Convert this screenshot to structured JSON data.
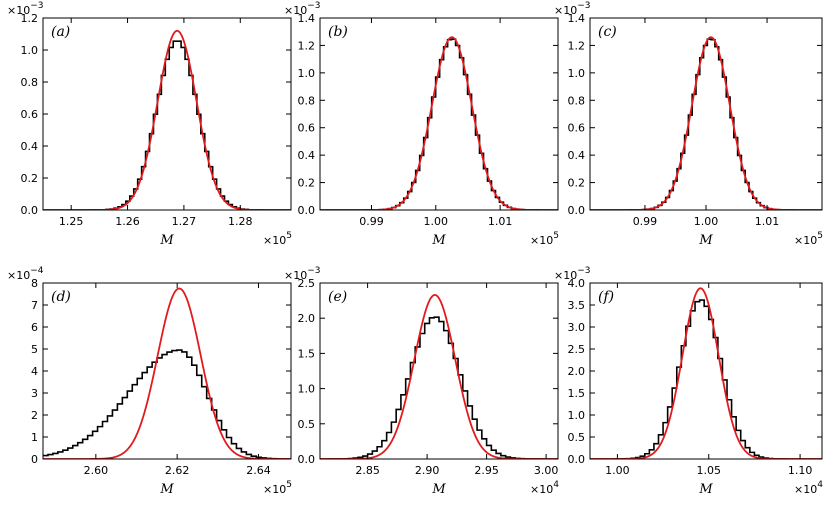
{
  "chart_data": [
    {
      "type": "line",
      "panel_label": "(a)",
      "xlabel": "M",
      "x_multiplier": "×10",
      "x_exponent": "5",
      "y_multiplier": "×10",
      "y_exponent": "−3",
      "xlim": [
        1.245,
        1.289
      ],
      "ylim": [
        0,
        1.2
      ],
      "x_ticks": [
        1.25,
        1.26,
        1.27,
        1.28
      ],
      "x_tick_labels": [
        "1.25",
        "1.26",
        "1.27",
        "1.28"
      ],
      "y_ticks": [
        0,
        0.2,
        0.4,
        0.6,
        0.8,
        1.0,
        1.2
      ],
      "y_tick_labels": [
        "0.0",
        "0.2",
        "0.4",
        "0.6",
        "0.8",
        "1.0",
        "1.2"
      ],
      "series": [
        {
          "name": "histogram",
          "kind": "step",
          "color": "#000000",
          "mean": 1.2688,
          "peak": 1.06,
          "sd_left": 0.0036,
          "sd_right": 0.0036,
          "bin_width": 0.0007,
          "range": [
            1.245,
            1.289
          ]
        },
        {
          "name": "gaussian fit",
          "kind": "curve",
          "color": "#e31a1c",
          "mean": 1.2688,
          "peak": 1.12,
          "sd": 0.00345
        }
      ]
    },
    {
      "type": "line",
      "panel_label": "(b)",
      "xlabel": "M",
      "x_multiplier": "×10",
      "x_exponent": "5",
      "y_multiplier": "×10",
      "y_exponent": "−3",
      "xlim": [
        0.982,
        1.019
      ],
      "ylim": [
        0,
        1.4
      ],
      "x_ticks": [
        0.99,
        1.0,
        1.01
      ],
      "x_tick_labels": [
        "0.99",
        "1.00",
        "1.01"
      ],
      "y_ticks": [
        0,
        0.2,
        0.4,
        0.6,
        0.8,
        1.0,
        1.2,
        1.4
      ],
      "y_tick_labels": [
        "0.0",
        "0.2",
        "0.4",
        "0.6",
        "0.8",
        "1.0",
        "1.2",
        "1.4"
      ],
      "series": [
        {
          "name": "histogram",
          "kind": "step",
          "color": "#000000",
          "mean": 1.0025,
          "peak": 1.25,
          "sd_left": 0.0031,
          "sd_right": 0.0031,
          "bin_width": 0.00062,
          "range": [
            0.982,
            1.019
          ]
        },
        {
          "name": "gaussian fit",
          "kind": "curve",
          "color": "#e31a1c",
          "mean": 1.0025,
          "peak": 1.26,
          "sd": 0.0031
        }
      ]
    },
    {
      "type": "line",
      "panel_label": "(c)",
      "xlabel": "M",
      "x_multiplier": "×10",
      "x_exponent": "5",
      "y_multiplier": "×10",
      "y_exponent": "−3",
      "xlim": [
        0.981,
        1.019
      ],
      "ylim": [
        0,
        1.4
      ],
      "x_ticks": [
        0.99,
        1.0,
        1.01
      ],
      "x_tick_labels": [
        "0.99",
        "1.00",
        "1.01"
      ],
      "y_ticks": [
        0,
        0.2,
        0.4,
        0.6,
        0.8,
        1.0,
        1.2,
        1.4
      ],
      "y_tick_labels": [
        "0.0",
        "0.2",
        "0.4",
        "0.6",
        "0.8",
        "1.0",
        "1.2",
        "1.4"
      ],
      "series": [
        {
          "name": "histogram",
          "kind": "step",
          "color": "#000000",
          "mean": 1.0008,
          "peak": 1.25,
          "sd_left": 0.0031,
          "sd_right": 0.0031,
          "bin_width": 0.00062,
          "range": [
            0.981,
            1.019
          ]
        },
        {
          "name": "gaussian fit",
          "kind": "curve",
          "color": "#e31a1c",
          "mean": 1.0008,
          "peak": 1.26,
          "sd": 0.0031
        }
      ]
    },
    {
      "type": "line",
      "panel_label": "(d)",
      "xlabel": "M",
      "x_multiplier": "×10",
      "x_exponent": "5",
      "y_multiplier": "×10",
      "y_exponent": "−4",
      "xlim": [
        2.587,
        2.648
      ],
      "ylim": [
        0,
        8
      ],
      "x_ticks": [
        2.6,
        2.62,
        2.64
      ],
      "x_tick_labels": [
        "2.60",
        "2.62",
        "2.64"
      ],
      "y_ticks": [
        0,
        1,
        2,
        3,
        4,
        5,
        6,
        7,
        8
      ],
      "y_tick_labels": [
        "0",
        "1",
        "2",
        "3",
        "4",
        "5",
        "6",
        "7",
        "8"
      ],
      "series": [
        {
          "name": "histogram",
          "kind": "step",
          "color": "#000000",
          "mean": 2.6205,
          "peak": 4.95,
          "sd_left": 0.0125,
          "sd_right": 0.0068,
          "bin_width": 0.00122,
          "range": [
            2.587,
            2.648
          ]
        },
        {
          "name": "gaussian fit",
          "kind": "curve",
          "color": "#e31a1c",
          "mean": 2.6205,
          "peak": 7.75,
          "sd": 0.0053
        }
      ]
    },
    {
      "type": "line",
      "panel_label": "(e)",
      "xlabel": "M",
      "x_multiplier": "×10",
      "x_exponent": "4",
      "y_multiplier": "×10",
      "y_exponent": "−3",
      "xlim": [
        2.81,
        3.01
      ],
      "ylim": [
        0,
        2.5
      ],
      "x_ticks": [
        2.85,
        2.9,
        2.95,
        3.0
      ],
      "x_tick_labels": [
        "2.85",
        "2.90",
        "2.95",
        "3.00"
      ],
      "y_ticks": [
        0,
        0.5,
        1.0,
        1.5,
        2.0,
        2.5
      ],
      "y_tick_labels": [
        "0.0",
        "0.5",
        "1.0",
        "1.5",
        "2.0",
        "2.5"
      ],
      "series": [
        {
          "name": "histogram",
          "kind": "step",
          "color": "#000000",
          "mean": 2.9065,
          "peak": 2.02,
          "sd_left": 0.021,
          "sd_right": 0.021,
          "bin_width": 0.004,
          "range": [
            2.81,
            3.01
          ]
        },
        {
          "name": "gaussian fit",
          "kind": "curve",
          "color": "#e31a1c",
          "mean": 2.9065,
          "peak": 2.33,
          "sd": 0.0172
        }
      ]
    },
    {
      "type": "line",
      "panel_label": "(f)",
      "xlabel": "M",
      "x_multiplier": "×10",
      "x_exponent": "4",
      "y_multiplier": "×10",
      "y_exponent": "−3",
      "xlim": [
        0.985,
        1.112
      ],
      "ylim": [
        0,
        4.0
      ],
      "x_ticks": [
        1.0,
        1.05,
        1.1
      ],
      "x_tick_labels": [
        "1.00",
        "1.05",
        "1.10"
      ],
      "y_ticks": [
        0,
        0.5,
        1.0,
        1.5,
        2.0,
        2.5,
        3.0,
        3.5,
        4.0
      ],
      "y_tick_labels": [
        "0.0",
        "0.5",
        "1.0",
        "1.5",
        "2.0",
        "2.5",
        "3.0",
        "3.5",
        "4.0"
      ],
      "series": [
        {
          "name": "histogram",
          "kind": "step",
          "color": "#000000",
          "mean": 1.0455,
          "peak": 3.62,
          "sd_left": 0.0112,
          "sd_right": 0.0112,
          "bin_width": 0.0025,
          "range": [
            0.985,
            1.112
          ]
        },
        {
          "name": "gaussian fit",
          "kind": "curve",
          "color": "#e31a1c",
          "mean": 1.0455,
          "peak": 3.88,
          "sd": 0.0099
        }
      ]
    }
  ]
}
